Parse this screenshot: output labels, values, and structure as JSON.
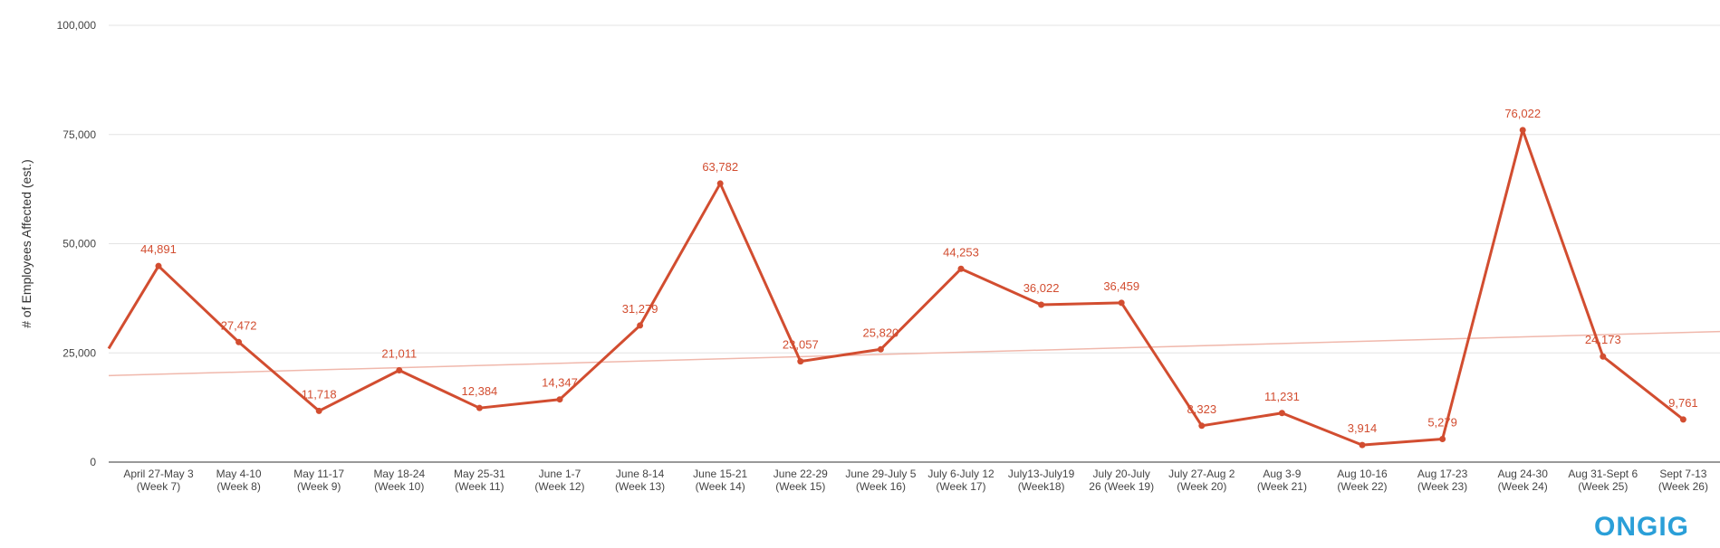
{
  "brand": {
    "logo_text": "ONGIG",
    "logo_color": "#2a9fd8"
  },
  "chart_data": {
    "type": "line",
    "title": "",
    "xlabel": "",
    "ylabel": "# of Employees Affected (est.)",
    "ylim": [
      0,
      100000
    ],
    "yticks": [
      "0",
      "25,000",
      "50,000",
      "75,000",
      "100,000"
    ],
    "yticks_values": [
      0,
      25000,
      50000,
      75000,
      100000
    ],
    "grid": true,
    "legend": "none",
    "colors": {
      "line": "#d24d30",
      "trendline": "#f0b8ac",
      "grid": "#e3e3e3"
    },
    "categories": [
      [
        "April 27-May 3",
        "(Week 7)"
      ],
      [
        "May 4-10",
        "(Week 8)"
      ],
      [
        "May 11-17",
        "(Week 9)"
      ],
      [
        "May 18-24",
        "(Week 10)"
      ],
      [
        "May 25-31",
        "(Week 11)"
      ],
      [
        "June 1-7",
        "(Week 12)"
      ],
      [
        "June 8-14",
        "(Week 13)"
      ],
      [
        "June 15-21",
        "(Week 14)"
      ],
      [
        "June 22-29",
        "(Week 15)"
      ],
      [
        "June 29-July 5",
        "(Week 16)"
      ],
      [
        "July 6-July 12",
        "(Week 17)"
      ],
      [
        "July13-July19",
        "(Week18)"
      ],
      [
        "July 20-July",
        "26 (Week 19)"
      ],
      [
        "July 27-Aug 2",
        "(Week 20)"
      ],
      [
        "Aug 3-9",
        "(Week 21)"
      ],
      [
        "Aug 10-16",
        "(Week 22)"
      ],
      [
        "Aug 17-23",
        "(Week 23)"
      ],
      [
        "Aug 24-30",
        "(Week 24)"
      ],
      [
        "Aug 31-Sept 6",
        "(Week 25)"
      ],
      [
        "Sept 7-13",
        "(Week 26)"
      ]
    ],
    "series": [
      {
        "values": [
          44891,
          27472,
          11718,
          21011,
          12384,
          14347,
          31279,
          63782,
          23057,
          25820,
          44253,
          36022,
          36459,
          8323,
          11231,
          3914,
          5279,
          76022,
          24173,
          9761
        ],
        "labels": [
          "44,891",
          "27,472",
          "11,718",
          "21,011",
          "12,384",
          "14,347",
          "31,279",
          "63,782",
          "23,057",
          "25,820",
          "44,253",
          "36,022",
          "36,459",
          "8,323",
          "11,231",
          "3,914",
          "5,279",
          "76,022",
          "24,173",
          "9,761"
        ]
      }
    ],
    "trendline": {
      "start": 19800,
      "end": 29900
    }
  }
}
